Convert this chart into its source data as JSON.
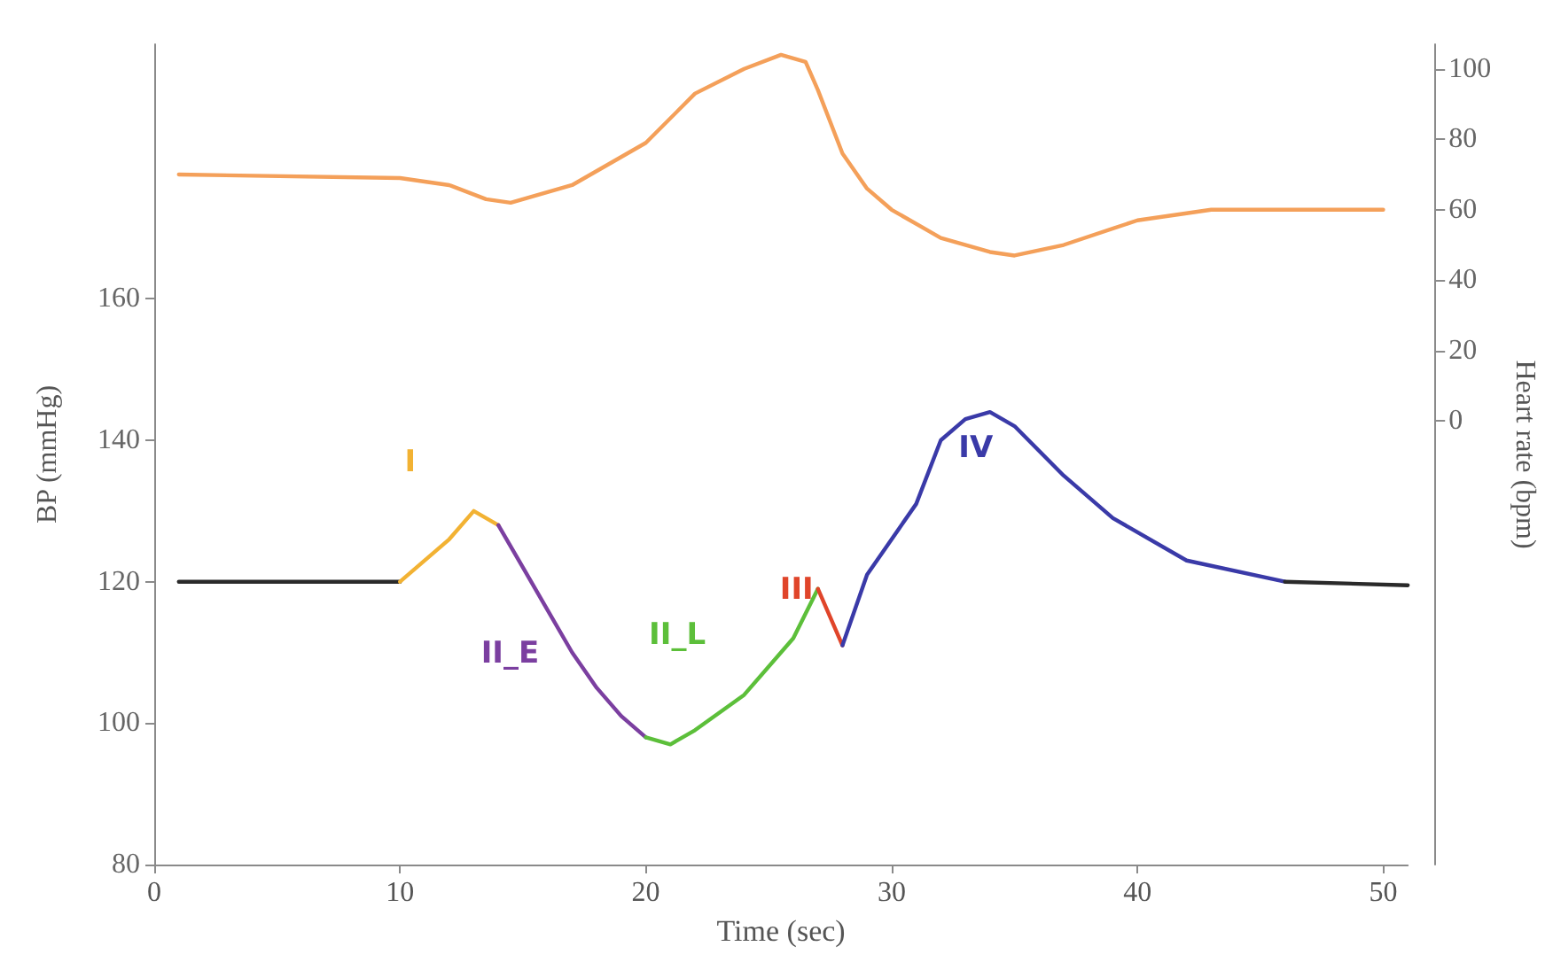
{
  "chart_data": {
    "type": "line",
    "xlabel": "Time (sec)",
    "ylabel": "BP (mmHg)",
    "y2label": "Heart rate (bpm)",
    "xlim": [
      0,
      51
    ],
    "xticks": [
      0,
      10,
      20,
      30,
      40,
      50
    ],
    "ylim": [
      80,
      196
    ],
    "yticks": [
      80,
      100,
      120,
      140,
      160
    ],
    "y2lim": [
      -126,
      107
    ],
    "y2ticks": [
      0,
      20,
      40,
      60,
      80,
      100
    ],
    "series": [
      {
        "color": "#f4a05a",
        "axis": "y2",
        "x": [
          1,
          10,
          12,
          13.5,
          14.5,
          17,
          20,
          22,
          24,
          25.5,
          26.5,
          27,
          28,
          29,
          30,
          32,
          34,
          35,
          37,
          40,
          43,
          50
        ],
        "values": [
          70,
          69,
          67,
          63,
          62,
          67,
          79,
          93,
          100,
          104,
          102,
          94,
          76,
          66,
          60,
          52,
          48,
          47,
          50,
          57,
          60,
          60
        ]
      },
      {
        "color": "#2a2a2a",
        "x": [
          1,
          10
        ],
        "values": [
          120,
          120
        ]
      },
      {
        "name": "I",
        "color": "#f2b233",
        "x": [
          10,
          12,
          13,
          14
        ],
        "values": [
          120,
          126,
          130,
          128
        ]
      },
      {
        "name": "II_E",
        "color": "#7b3fa0",
        "x": [
          14,
          15,
          16,
          17,
          18,
          19,
          20
        ],
        "values": [
          128,
          122,
          116,
          110,
          105,
          101,
          98
        ]
      },
      {
        "name": "II_L",
        "color": "#5cbf3a",
        "x": [
          20,
          21,
          22,
          24,
          26,
          27
        ],
        "values": [
          98,
          97,
          99,
          104,
          112,
          119
        ]
      },
      {
        "name": "III",
        "color": "#e0452a",
        "x": [
          27,
          28
        ],
        "values": [
          119,
          111
        ]
      },
      {
        "name": "IV",
        "color": "#3a3aa8",
        "x": [
          28,
          29,
          31,
          32,
          33,
          34,
          35,
          37,
          39,
          42,
          46
        ],
        "values": [
          111,
          121,
          131,
          140,
          143,
          144,
          142,
          135,
          129,
          123,
          120
        ]
      },
      {
        "color": "#2a2a2a",
        "x": [
          46,
          51
        ],
        "values": [
          120,
          119.5
        ]
      }
    ]
  }
}
